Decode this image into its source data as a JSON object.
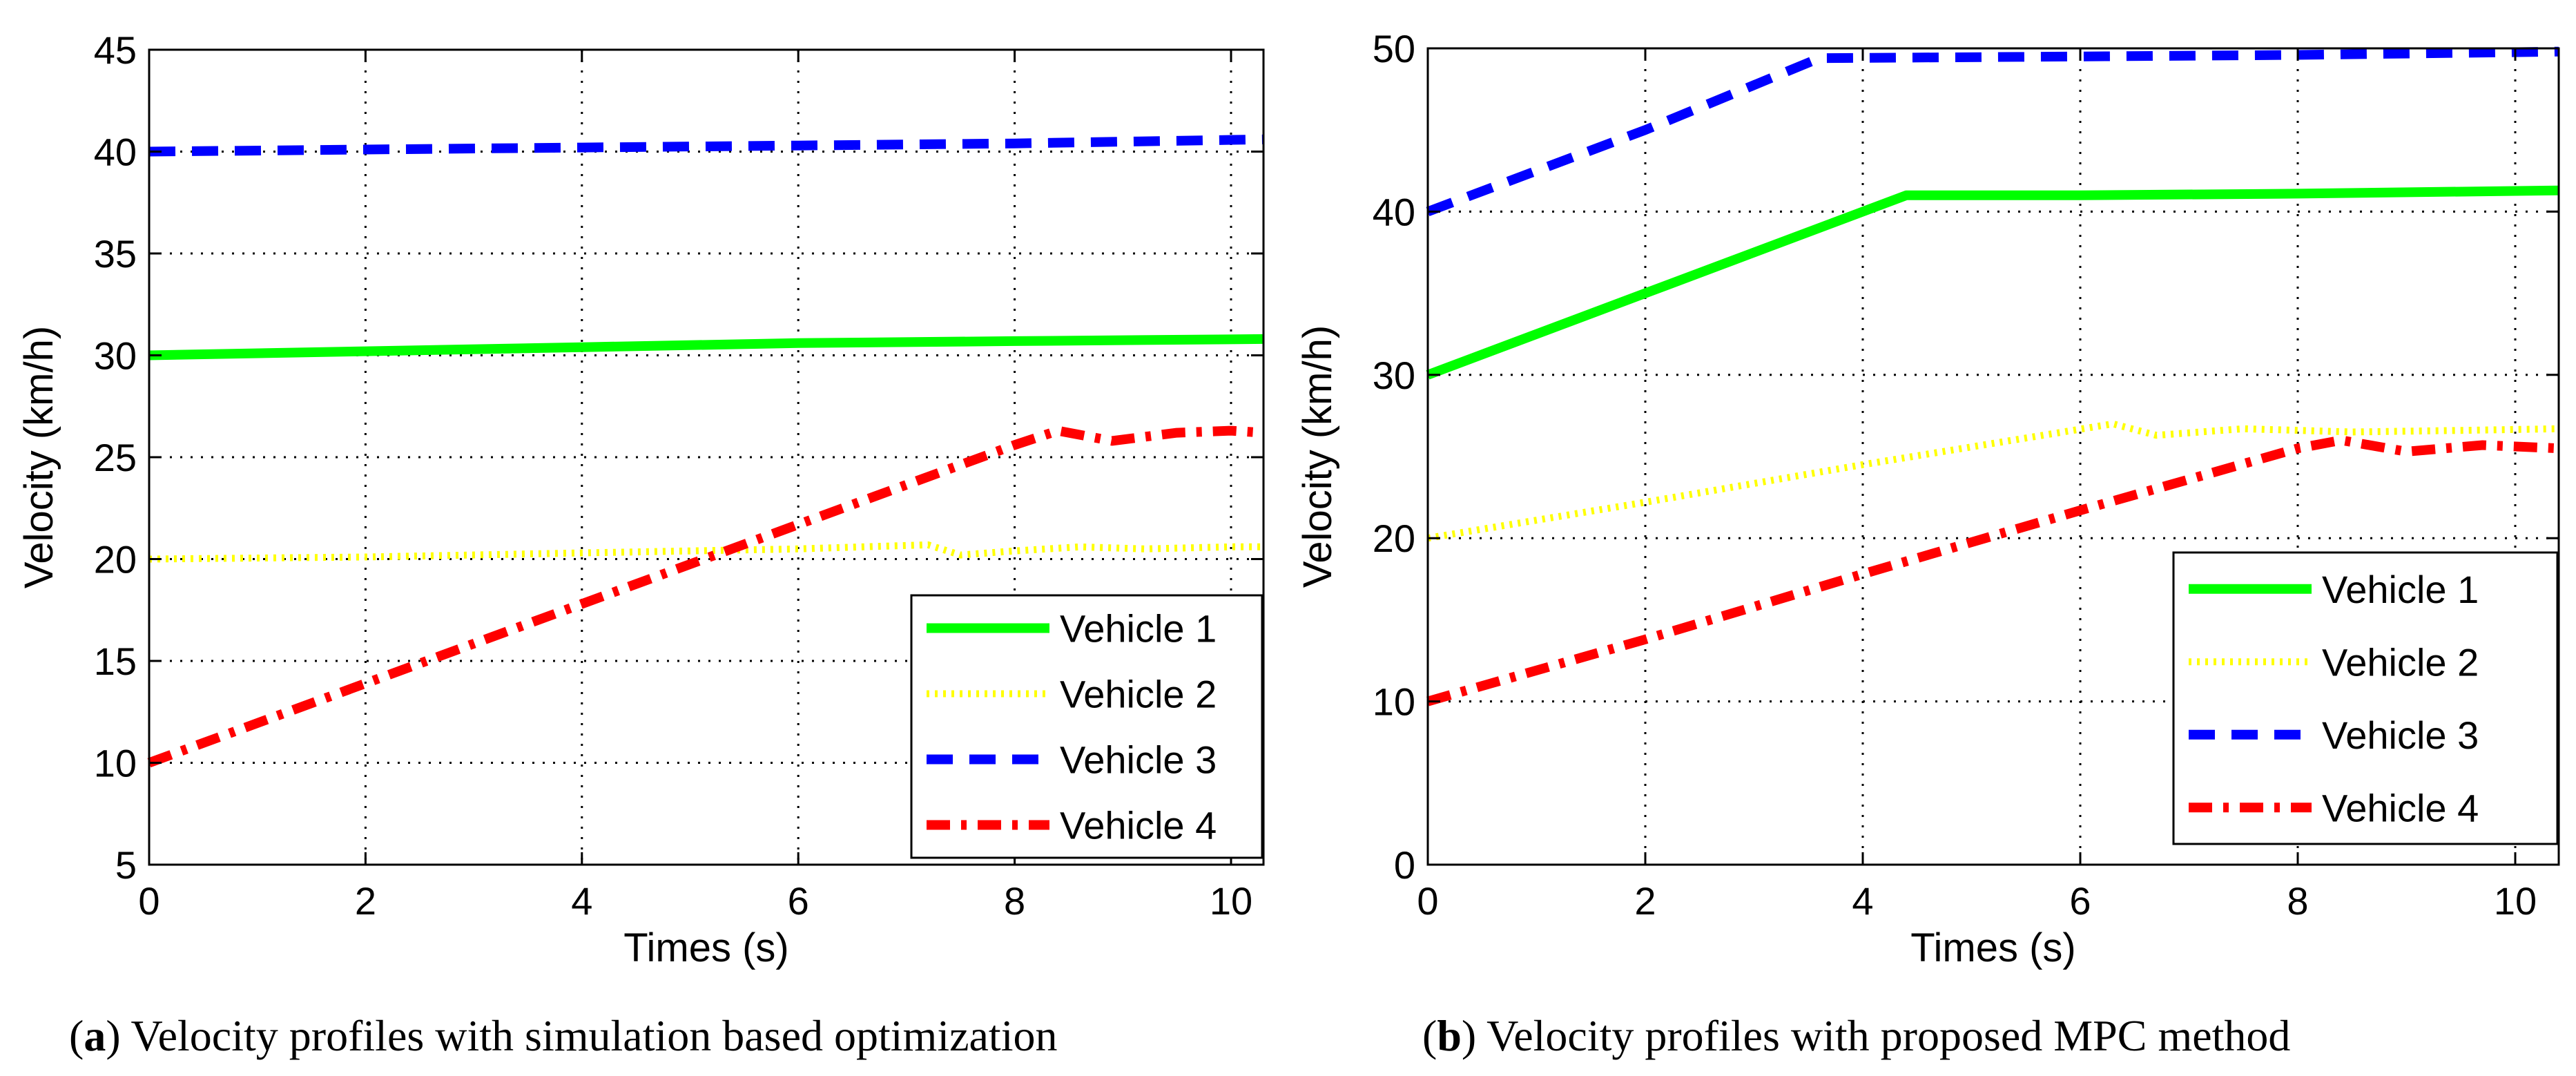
{
  "chart_data": [
    {
      "type": "line",
      "xlabel": "Times (s)",
      "ylabel": "Velocity (km/h)",
      "xlim": [
        0,
        10.3
      ],
      "ylim": [
        5,
        45
      ],
      "xticks": [
        0,
        2,
        4,
        6,
        8,
        10
      ],
      "yticks": [
        5,
        10,
        15,
        20,
        25,
        30,
        35,
        40,
        45
      ],
      "grid": true,
      "legend_position": "bottom-right",
      "caption_letter": "a",
      "caption_text": "Velocity profiles with simulation based optimization",
      "series": [
        {
          "name": "Vehicle 1",
          "color": "#00ff00",
          "style": "solid",
          "x": [
            0,
            2,
            4,
            6,
            8,
            10.3
          ],
          "y": [
            30,
            30.2,
            30.4,
            30.6,
            30.7,
            30.8
          ]
        },
        {
          "name": "Vehicle 2",
          "color": "#ffff00",
          "style": "dotted",
          "x": [
            0,
            2,
            4,
            6,
            7.2,
            7.5,
            8,
            8.6,
            9.2,
            10,
            10.3
          ],
          "y": [
            20,
            20.1,
            20.3,
            20.5,
            20.7,
            20.2,
            20.4,
            20.6,
            20.5,
            20.6,
            20.6
          ]
        },
        {
          "name": "Vehicle 3",
          "color": "#0000ff",
          "style": "dashed",
          "x": [
            0,
            2,
            4,
            6,
            8,
            10.3
          ],
          "y": [
            40,
            40.1,
            40.2,
            40.3,
            40.4,
            40.6
          ]
        },
        {
          "name": "Vehicle 4",
          "color": "#ff0000",
          "style": "dashdot",
          "x": [
            0,
            2,
            4,
            6,
            8,
            8.4,
            8.9,
            9.5,
            10,
            10.3
          ],
          "y": [
            10,
            13.9,
            17.8,
            21.7,
            25.6,
            26.3,
            25.8,
            26.2,
            26.3,
            26.2
          ]
        }
      ]
    },
    {
      "type": "line",
      "xlabel": "Times (s)",
      "ylabel": "Velocity (km/h)",
      "xlim": [
        0,
        10.4
      ],
      "ylim": [
        0,
        50
      ],
      "xticks": [
        0,
        2,
        4,
        6,
        8,
        10
      ],
      "yticks": [
        0,
        10,
        20,
        30,
        40,
        50
      ],
      "grid": true,
      "legend_position": "bottom-right",
      "caption_letter": "b",
      "caption_text": "Velocity profiles with proposed MPC method",
      "series": [
        {
          "name": "Vehicle 1",
          "color": "#00ff00",
          "style": "solid",
          "x": [
            0,
            2,
            4.4,
            6,
            8,
            10.4
          ],
          "y": [
            30,
            35,
            41,
            41,
            41.1,
            41.3
          ]
        },
        {
          "name": "Vehicle 2",
          "color": "#ffff00",
          "style": "dotted",
          "x": [
            0,
            2,
            4,
            6.3,
            6.7,
            7.5,
            8.5,
            9.5,
            10.4
          ],
          "y": [
            20,
            22.2,
            24.5,
            27,
            26.3,
            26.7,
            26.5,
            26.6,
            26.7
          ]
        },
        {
          "name": "Vehicle 3",
          "color": "#0000ff",
          "style": "dashed",
          "x": [
            0,
            2,
            3.6,
            6,
            8,
            10.4
          ],
          "y": [
            40,
            45,
            49.4,
            49.5,
            49.6,
            49.8
          ]
        },
        {
          "name": "Vehicle 4",
          "color": "#ff0000",
          "style": "dashdot",
          "x": [
            0,
            2,
            4,
            6,
            8,
            8.4,
            9,
            9.7,
            10.4
          ],
          "y": [
            10,
            13.8,
            17.8,
            21.7,
            25.5,
            26,
            25.3,
            25.7,
            25.5
          ]
        }
      ]
    }
  ]
}
